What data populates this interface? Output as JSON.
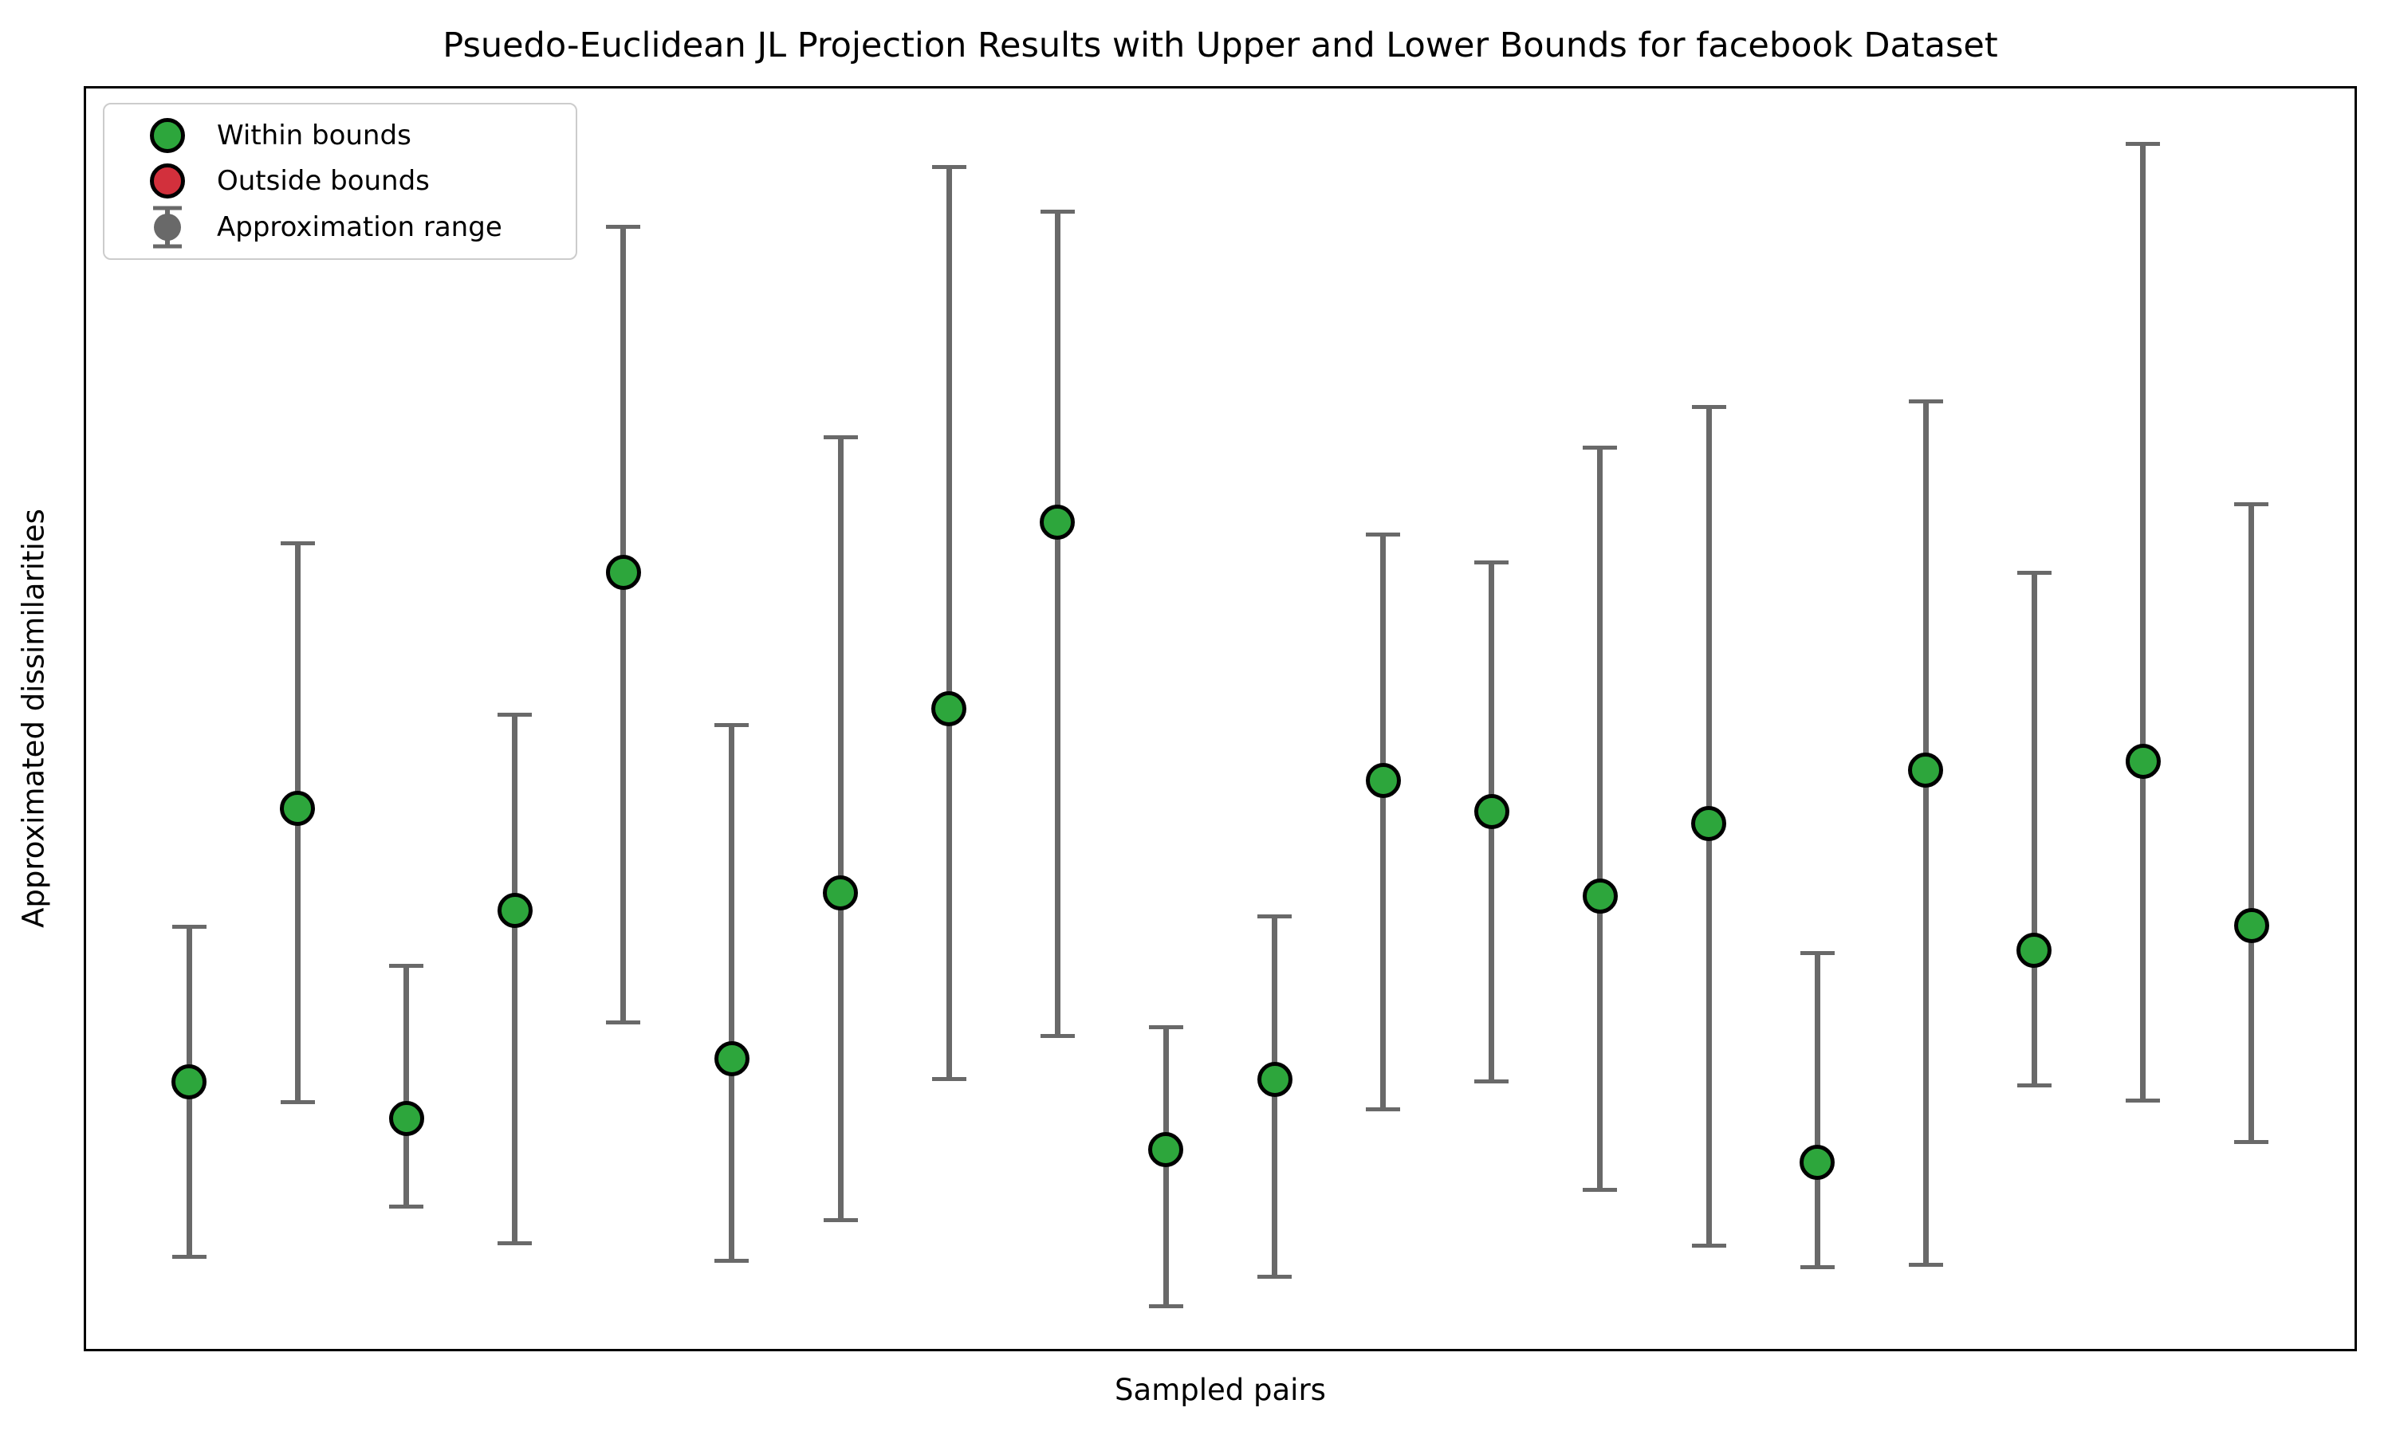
{
  "title": "Psuedo-Euclidean JL Projection Results with Upper and Lower Bounds for facebook Dataset",
  "axes": {
    "x_label": "Sampled pairs",
    "y_label": "Approximated dissimilarities",
    "x_tick_labels": [],
    "y_tick_labels": []
  },
  "legend": {
    "items": [
      {
        "label": "Within bounds",
        "marker": "circle",
        "color_key": "within"
      },
      {
        "label": "Outside bounds",
        "marker": "circle",
        "color_key": "outside"
      },
      {
        "label": "Approximation range",
        "marker": "errorbar",
        "color_key": "range"
      }
    ]
  },
  "colors": {
    "within": "#2DA63C",
    "outside": "#D2303C",
    "range": "#696969",
    "marker_edge": "#000000",
    "spine": "#000000",
    "legend_border": "#cccccc"
  },
  "chart_data": {
    "type": "scatter",
    "subtype": "errorbar",
    "title": "Psuedo-Euclidean JL Projection Results with Upper and Lower Bounds for facebook Dataset",
    "xlabel": "Sampled pairs",
    "ylabel": "Approximated dissimilarities",
    "grid": false,
    "legend_position": "upper left",
    "axis_note": "Neither axis shows tick marks or tick labels; y values below are estimated fractions of the visible plot height (0 = bottom spine, 1 = top spine); x is the sample index 1-20 evenly spaced.",
    "n_points": 20,
    "points": [
      {
        "index": 1,
        "value": 0.212,
        "lower": 0.073,
        "upper": 0.335,
        "status": "within"
      },
      {
        "index": 2,
        "value": 0.429,
        "lower": 0.196,
        "upper": 0.639,
        "status": "within"
      },
      {
        "index": 3,
        "value": 0.183,
        "lower": 0.113,
        "upper": 0.304,
        "status": "within"
      },
      {
        "index": 4,
        "value": 0.348,
        "lower": 0.084,
        "upper": 0.503,
        "status": "within"
      },
      {
        "index": 5,
        "value": 0.616,
        "lower": 0.259,
        "upper": 0.89,
        "status": "within"
      },
      {
        "index": 6,
        "value": 0.23,
        "lower": 0.07,
        "upper": 0.495,
        "status": "within"
      },
      {
        "index": 7,
        "value": 0.362,
        "lower": 0.102,
        "upper": 0.723,
        "status": "within"
      },
      {
        "index": 8,
        "value": 0.508,
        "lower": 0.214,
        "upper": 0.938,
        "status": "within"
      },
      {
        "index": 9,
        "value": 0.656,
        "lower": 0.248,
        "upper": 0.902,
        "status": "within"
      },
      {
        "index": 10,
        "value": 0.158,
        "lower": 0.034,
        "upper": 0.255,
        "status": "within"
      },
      {
        "index": 11,
        "value": 0.214,
        "lower": 0.057,
        "upper": 0.343,
        "status": "within"
      },
      {
        "index": 12,
        "value": 0.451,
        "lower": 0.19,
        "upper": 0.646,
        "status": "within"
      },
      {
        "index": 13,
        "value": 0.426,
        "lower": 0.212,
        "upper": 0.624,
        "status": "within"
      },
      {
        "index": 14,
        "value": 0.359,
        "lower": 0.126,
        "upper": 0.715,
        "status": "within"
      },
      {
        "index": 15,
        "value": 0.417,
        "lower": 0.082,
        "upper": 0.747,
        "status": "within"
      },
      {
        "index": 16,
        "value": 0.148,
        "lower": 0.065,
        "upper": 0.314,
        "status": "within"
      },
      {
        "index": 17,
        "value": 0.459,
        "lower": 0.067,
        "upper": 0.752,
        "status": "within"
      },
      {
        "index": 18,
        "value": 0.316,
        "lower": 0.209,
        "upper": 0.616,
        "status": "within"
      },
      {
        "index": 19,
        "value": 0.466,
        "lower": 0.197,
        "upper": 0.956,
        "status": "within"
      },
      {
        "index": 20,
        "value": 0.336,
        "lower": 0.164,
        "upper": 0.67,
        "status": "within"
      }
    ]
  }
}
